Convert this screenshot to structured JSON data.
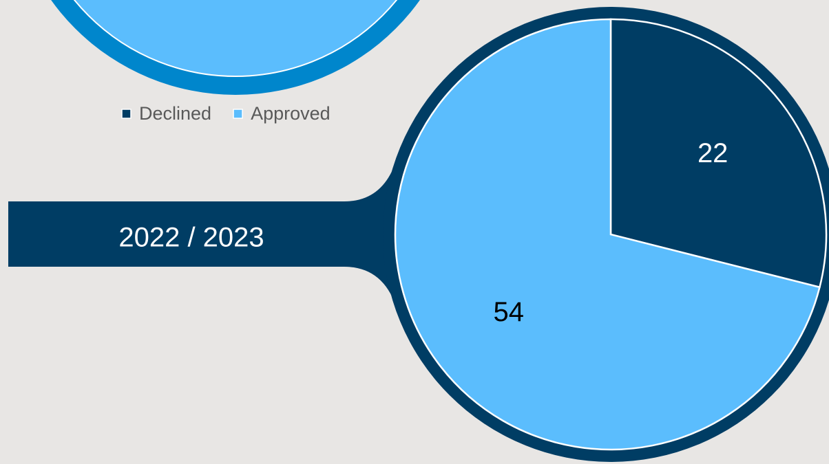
{
  "chart_data": {
    "type": "pie",
    "title": "2022 / 2023",
    "categories": [
      "Declined",
      "Approved"
    ],
    "values": [
      22,
      54
    ],
    "colors": [
      "#003d64",
      "#5bbdfd"
    ],
    "label_colors": [
      "#ffffff",
      "#000000"
    ],
    "legend": "top-left"
  }
}
